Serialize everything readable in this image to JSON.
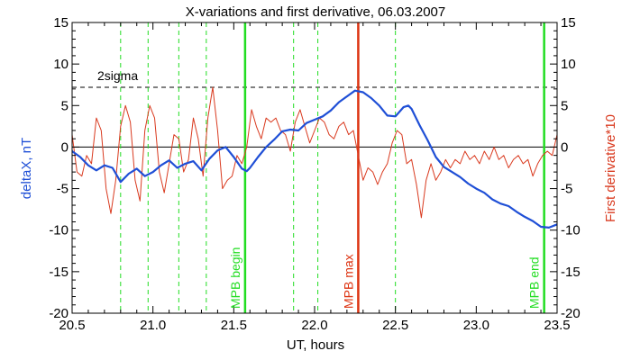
{
  "chart_data": {
    "type": "line",
    "title": "X-variations and first derivative, 06.03.2007",
    "xlabel": "UT, hours",
    "ylabel": "deltaX, nT",
    "ylabel_right": "First derivative*10",
    "xlim": [
      20.5,
      23.5
    ],
    "ylim": [
      -20,
      15
    ],
    "ylim_right": [
      -20,
      15
    ],
    "x_ticks": [
      "20.5",
      "21.0",
      "21.5",
      "22.0",
      "22.5",
      "23.0",
      "23.5"
    ],
    "y_ticks": [
      "15",
      "10",
      "5",
      "0",
      "-5",
      "-10",
      "-15",
      "-20"
    ],
    "sigma_level": 7.2,
    "sigma_label": "2sigma",
    "dashed_green_lines_x": [
      20.8,
      20.97,
      21.16,
      21.33,
      21.87,
      22.02,
      22.5
    ],
    "markers": [
      {
        "label": "MPB begin",
        "x": 21.57,
        "color": "#22dd22"
      },
      {
        "label": "MPB max",
        "x": 22.27,
        "color": "#dd3311"
      },
      {
        "label": "MPB end",
        "x": 23.42,
        "color": "#22dd22"
      }
    ],
    "series": [
      {
        "name": "deltaX",
        "color": "#1f4fd6",
        "x": [
          20.5,
          20.55,
          20.6,
          20.65,
          20.7,
          20.75,
          20.8,
          20.85,
          20.9,
          20.95,
          21.0,
          21.05,
          21.1,
          21.15,
          21.2,
          21.25,
          21.3,
          21.35,
          21.4,
          21.45,
          21.5,
          21.55,
          21.58,
          21.6,
          21.65,
          21.7,
          21.75,
          21.8,
          21.85,
          21.9,
          21.95,
          22.0,
          22.05,
          22.1,
          22.15,
          22.2,
          22.25,
          22.3,
          22.35,
          22.4,
          22.45,
          22.5,
          22.55,
          22.58,
          22.6,
          22.65,
          22.7,
          22.75,
          22.8,
          22.85,
          22.9,
          22.95,
          23.0,
          23.05,
          23.1,
          23.15,
          23.2,
          23.25,
          23.3,
          23.35,
          23.4,
          23.45,
          23.5
        ],
        "values": [
          -0.5,
          -1.2,
          -2.2,
          -2.8,
          -2.2,
          -2.5,
          -4.2,
          -3.2,
          -2.6,
          -3.5,
          -3.0,
          -2.2,
          -1.6,
          -2.5,
          -2.0,
          -1.7,
          -2.8,
          -1.4,
          -0.4,
          0.0,
          -1.2,
          -2.6,
          -2.9,
          -2.5,
          -1.2,
          0.0,
          0.9,
          1.9,
          2.1,
          2.0,
          2.9,
          3.3,
          3.7,
          4.4,
          5.4,
          6.1,
          6.8,
          6.6,
          5.9,
          5.0,
          3.8,
          3.7,
          4.8,
          5.0,
          4.6,
          2.6,
          0.8,
          -1.2,
          -2.4,
          -3.0,
          -3.6,
          -4.4,
          -5.0,
          -5.5,
          -6.3,
          -6.8,
          -7.1,
          -7.8,
          -8.4,
          -8.9,
          -9.6,
          -9.7,
          -9.3
        ]
      },
      {
        "name": "First derivative*10",
        "color": "#d93a1f",
        "x": [
          20.5,
          20.53,
          20.56,
          20.59,
          20.62,
          20.65,
          20.68,
          20.71,
          20.74,
          20.77,
          20.8,
          20.83,
          20.86,
          20.89,
          20.92,
          20.95,
          20.98,
          21.01,
          21.04,
          21.07,
          21.1,
          21.13,
          21.16,
          21.19,
          21.22,
          21.25,
          21.28,
          21.31,
          21.34,
          21.37,
          21.4,
          21.43,
          21.46,
          21.49,
          21.52,
          21.55,
          21.58,
          21.61,
          21.64,
          21.67,
          21.7,
          21.73,
          21.76,
          21.79,
          21.82,
          21.85,
          21.88,
          21.91,
          21.94,
          21.97,
          22.0,
          22.03,
          22.06,
          22.09,
          22.12,
          22.15,
          22.18,
          22.21,
          22.24,
          22.27,
          22.3,
          22.33,
          22.36,
          22.39,
          22.42,
          22.45,
          22.48,
          22.51,
          22.54,
          22.57,
          22.6,
          22.63,
          22.66,
          22.69,
          22.72,
          22.75,
          22.78,
          22.81,
          22.84,
          22.87,
          22.9,
          22.93,
          22.96,
          22.99,
          23.02,
          23.05,
          23.08,
          23.11,
          23.14,
          23.17,
          23.2,
          23.23,
          23.26,
          23.29,
          23.32,
          23.35,
          23.38,
          23.41,
          23.44,
          23.47,
          23.5
        ],
        "values": [
          1.5,
          -3.0,
          -3.5,
          -1.0,
          -2.0,
          3.5,
          2.0,
          -5.0,
          -8.0,
          -4.0,
          2.5,
          5.0,
          3.0,
          -4.0,
          -6.5,
          2.0,
          5.0,
          3.5,
          -3.0,
          -5.5,
          -2.0,
          1.5,
          1.0,
          -3.0,
          -1.5,
          3.5,
          1.0,
          -3.5,
          3.5,
          7.2,
          2.0,
          -5.0,
          -4.0,
          -3.5,
          -1.0,
          -2.0,
          0.0,
          4.5,
          2.5,
          1.0,
          3.5,
          3.0,
          3.5,
          2.0,
          1.5,
          -0.5,
          3.0,
          4.5,
          2.5,
          0.5,
          2.0,
          3.5,
          3.0,
          1.5,
          1.0,
          2.5,
          3.0,
          1.5,
          2.0,
          -1.0,
          -4.0,
          -2.5,
          -3.0,
          -4.5,
          -3.0,
          -2.0,
          0.5,
          2.0,
          1.5,
          -2.0,
          -1.5,
          -4.5,
          -8.5,
          -4.0,
          -2.0,
          -4.0,
          -3.0,
          -1.5,
          -2.5,
          -1.5,
          -2.0,
          -0.5,
          -1.5,
          -1.0,
          -2.0,
          -0.5,
          -1.5,
          0.0,
          -1.5,
          -1.0,
          -2.5,
          -1.5,
          -1.0,
          -2.0,
          -1.5,
          -3.5,
          -2.0,
          -1.0,
          -0.5,
          -1.0,
          1.5
        ]
      }
    ]
  }
}
